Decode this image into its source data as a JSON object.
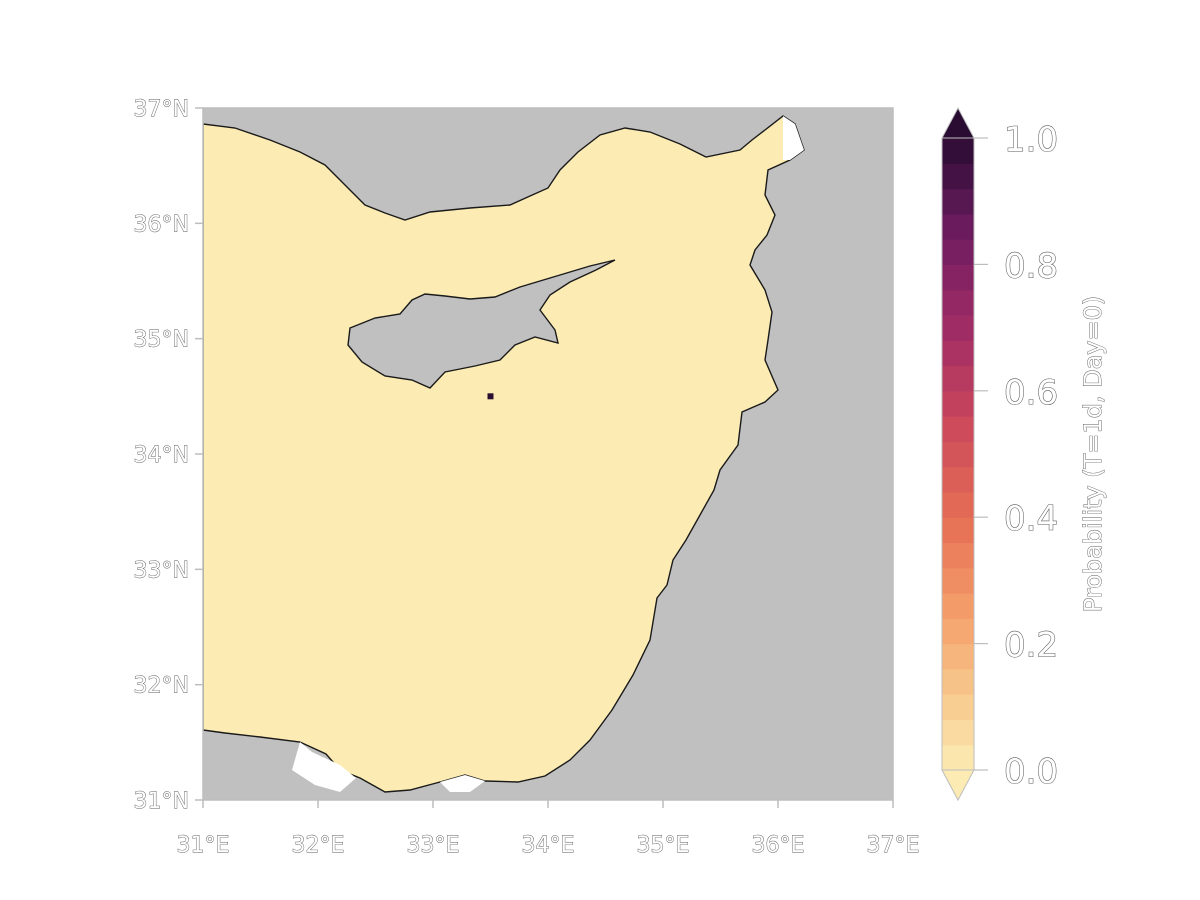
{
  "map": {
    "x_ticks": [
      "31°E",
      "32°E",
      "33°E",
      "34°E",
      "35°E",
      "36°E",
      "37°E"
    ],
    "y_ticks": [
      "37°N",
      "36°N",
      "35°N",
      "34°N",
      "33°N",
      "32°N",
      "31°N"
    ],
    "lon_range": [
      31,
      37
    ],
    "lat_range": [
      31,
      37
    ],
    "colors": {
      "land": "#c0c0c0",
      "sea": "#fcecb3",
      "coastline": "#1a1a1a",
      "marker": "#2b0f33"
    },
    "release_point": {
      "lon": 33.5,
      "lat": 34.5
    }
  },
  "colorbar": {
    "title": "Probability (T=1d, Day=0)",
    "labels": [
      "1.0",
      "0.8",
      "0.6",
      "0.4",
      "0.2",
      "0.0"
    ],
    "range": [
      0,
      1
    ],
    "extend": "both",
    "colormap": "magma-reversed"
  }
}
